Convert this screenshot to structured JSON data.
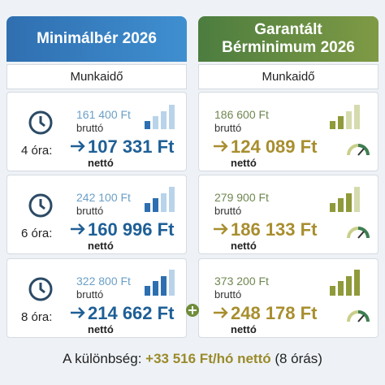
{
  "columns": [
    {
      "title": "Minimálbér 2026",
      "subtitle": "Munkaidő",
      "rows": [
        {
          "gross": "161 400 Ft",
          "gross_label": "bruttó",
          "net": "107 331 Ft",
          "net_label": "nettó"
        },
        {
          "gross": "242 100 Ft",
          "gross_label": "bruttó",
          "net": "160 996 Ft",
          "net_label": "nettó"
        },
        {
          "gross": "322 800 Ft",
          "gross_label": "bruttó",
          "net": "214 662 Ft",
          "net_label": "nettó"
        }
      ]
    },
    {
      "title": "Garantált Bérminimum 2026",
      "subtitle": "Munkaidő",
      "rows": [
        {
          "gross": "186 600 Ft",
          "gross_label": "bruttó",
          "net": "124 089 Ft",
          "net_label": "nettó"
        },
        {
          "gross": "279 900 Ft",
          "gross_label": "bruttó",
          "net": "186 133 Ft",
          "net_label": "nettó"
        },
        {
          "gross": "373 200 Ft",
          "gross_label": "bruttó",
          "net": "248 178 Ft",
          "net_label": "nettó"
        }
      ]
    }
  ],
  "hours": [
    "4 óra:",
    "6 óra:",
    "8 óra:"
  ],
  "footer": {
    "label": "A különbség:",
    "amount": "+33 516 Ft/hó nettó",
    "note": "(8 órás)"
  }
}
